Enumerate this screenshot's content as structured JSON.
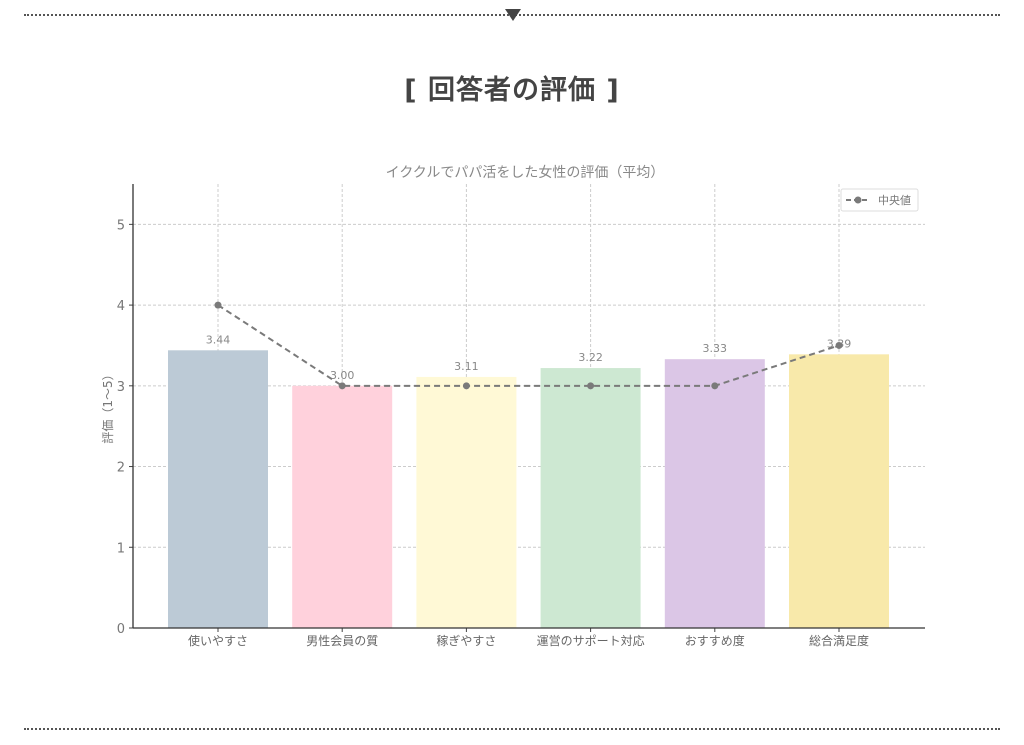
{
  "heading": "[ 回答者の評価 ]",
  "chart_data": {
    "type": "bar",
    "title": "イククルでパパ活をした女性の評価（平均）",
    "xlabel": "",
    "ylabel": "評価（1〜5）",
    "ylim": [
      0,
      5.5
    ],
    "yticks": [
      "0",
      "1",
      "2",
      "3",
      "4",
      "5"
    ],
    "grid": true,
    "legend_position": "top-right",
    "categories": [
      "使いやすさ",
      "男性会員の質",
      "稼ぎやすさ",
      "運営のサポート対応",
      "おすすめ度",
      "総合満足度"
    ],
    "values": [
      3.44,
      3.0,
      3.11,
      3.22,
      3.33,
      3.39
    ],
    "value_labels": [
      "3.44",
      "3.00",
      "3.11",
      "3.22",
      "3.33",
      "3.39"
    ],
    "bar_colors": [
      "#bccad6",
      "#ffd1dc",
      "#fff9d6",
      "#cde8d2",
      "#dbc6e6",
      "#f8e9aa"
    ],
    "series": [
      {
        "name": "中央値",
        "type": "line",
        "style": "dashed",
        "marker": "circle",
        "color": "#7a7a7a",
        "values": [
          4,
          3,
          3,
          3,
          3,
          3.5
        ]
      }
    ]
  }
}
